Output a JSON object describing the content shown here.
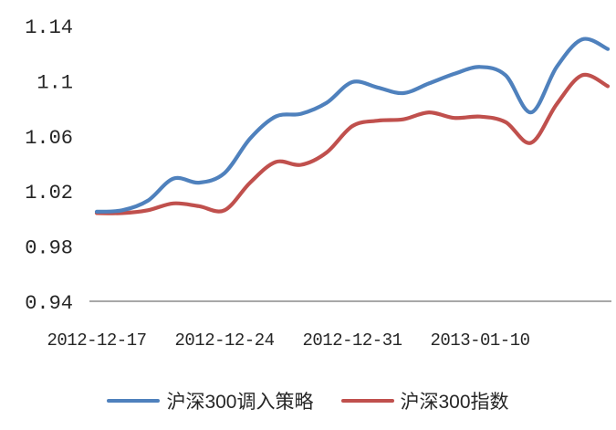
{
  "chart_data": {
    "type": "line",
    "title": "",
    "xlabel": "",
    "ylabel": "",
    "grid": "off",
    "legend_position": "bottom",
    "ylim": [
      0.94,
      1.14
    ],
    "y_ticks": [
      "1.14",
      "1.1",
      "1.06",
      "1.02",
      "0.98",
      "0.94"
    ],
    "x_ticks": [
      {
        "index": 0,
        "label": "2012-12-17"
      },
      {
        "index": 5,
        "label": "2012-12-24"
      },
      {
        "index": 10,
        "label": "2012-12-31"
      },
      {
        "index": 15,
        "label": "2013-01-10"
      }
    ],
    "axis_color": "#8c8c8c",
    "series": [
      {
        "id": "strategy",
        "name": "沪深300调入策略",
        "color": "#4f81bd",
        "values": [
          1.005,
          1.006,
          1.013,
          1.029,
          1.026,
          1.033,
          1.058,
          1.074,
          1.076,
          1.084,
          1.099,
          1.095,
          1.091,
          1.098,
          1.105,
          1.11,
          1.104,
          1.077,
          1.11,
          1.13,
          1.123
        ]
      },
      {
        "id": "index",
        "name": "沪深300指数",
        "color": "#c0504d",
        "values": [
          1.004,
          1.004,
          1.006,
          1.011,
          1.009,
          1.006,
          1.026,
          1.041,
          1.039,
          1.048,
          1.067,
          1.071,
          1.072,
          1.077,
          1.073,
          1.074,
          1.07,
          1.055,
          1.083,
          1.104,
          1.096
        ]
      }
    ]
  }
}
